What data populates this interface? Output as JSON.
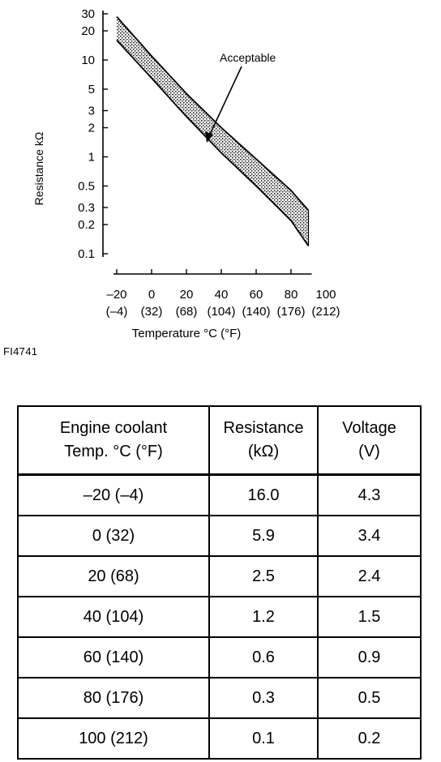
{
  "figure_id": "FI4741",
  "chart_data": {
    "type": "area",
    "title": "",
    "ylabel": "Resistance kΩ",
    "xlabel": "Temperature °C (°F)",
    "y_scale": "log",
    "ylim": [
      0.1,
      30
    ],
    "xlim": [
      -20,
      100
    ],
    "y_ticks": [
      "30",
      "20",
      "10",
      "5",
      "3",
      "2",
      "1",
      "0.5",
      "0.3",
      "0.2",
      "0.1"
    ],
    "y_tick_values": [
      30,
      20,
      10,
      5,
      3,
      2,
      1,
      0.5,
      0.3,
      0.2,
      0.1
    ],
    "x_ticks": [
      {
        "c": "–20",
        "f": "(–4)",
        "value": -20
      },
      {
        "c": "0",
        "f": "(32)",
        "value": 0
      },
      {
        "c": "20",
        "f": "(68)",
        "value": 20
      },
      {
        "c": "40",
        "f": "(104)",
        "value": 40
      },
      {
        "c": "60",
        "f": "(140)",
        "value": 60
      },
      {
        "c": "80",
        "f": "(176)",
        "value": 80
      },
      {
        "c": "100",
        "f": "(212)",
        "value": 100
      }
    ],
    "band": {
      "label": "Acceptable",
      "x": [
        -20,
        0,
        20,
        40,
        60,
        80,
        90
      ],
      "upper": [
        28.0,
        11.0,
        4.5,
        2.0,
        0.95,
        0.45,
        0.28
      ],
      "lower": [
        16.0,
        6.5,
        2.6,
        1.1,
        0.5,
        0.22,
        0.12
      ]
    }
  },
  "table": {
    "headers": [
      [
        "Engine coolant",
        "Temp. °C (°F)"
      ],
      [
        "Resistance",
        "(kΩ)"
      ],
      [
        "Voltage",
        "(V)"
      ]
    ],
    "rows": [
      {
        "temp": "–20 (–4)",
        "resistance": "16.0",
        "voltage": "4.3"
      },
      {
        "temp": "0 (32)",
        "resistance": "5.9",
        "voltage": "3.4"
      },
      {
        "temp": "20 (68)",
        "resistance": "2.5",
        "voltage": "2.4"
      },
      {
        "temp": "40 (104)",
        "resistance": "1.2",
        "voltage": "1.5"
      },
      {
        "temp": "60 (140)",
        "resistance": "0.6",
        "voltage": "0.9"
      },
      {
        "temp": "80 (176)",
        "resistance": "0.3",
        "voltage": "0.5"
      },
      {
        "temp": "100 (212)",
        "resistance": "0.1",
        "voltage": "0.2"
      }
    ]
  }
}
